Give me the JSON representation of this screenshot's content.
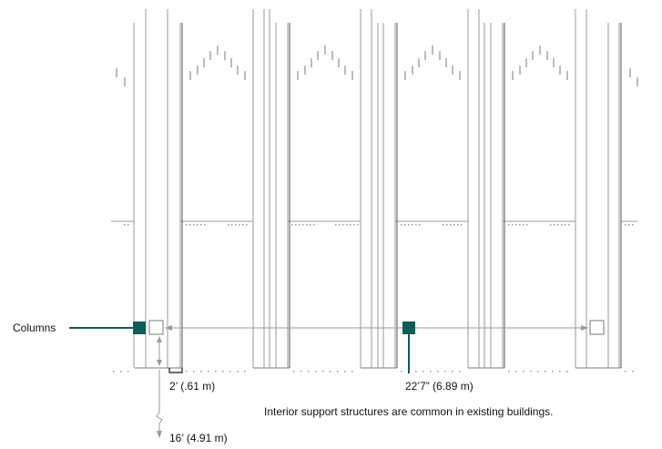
{
  "labels": {
    "columns": "Columns",
    "short_dimension": "2’ (.61 m)",
    "span_dimension": "22’7” (6.89 m)",
    "height_dimension": "16’ (4.91 m)",
    "caption": "Interior support structures are common in existing buildings."
  },
  "colors": {
    "accent": "#0d5e57",
    "line": "#9a9a9a",
    "dark_line": "#555555"
  }
}
